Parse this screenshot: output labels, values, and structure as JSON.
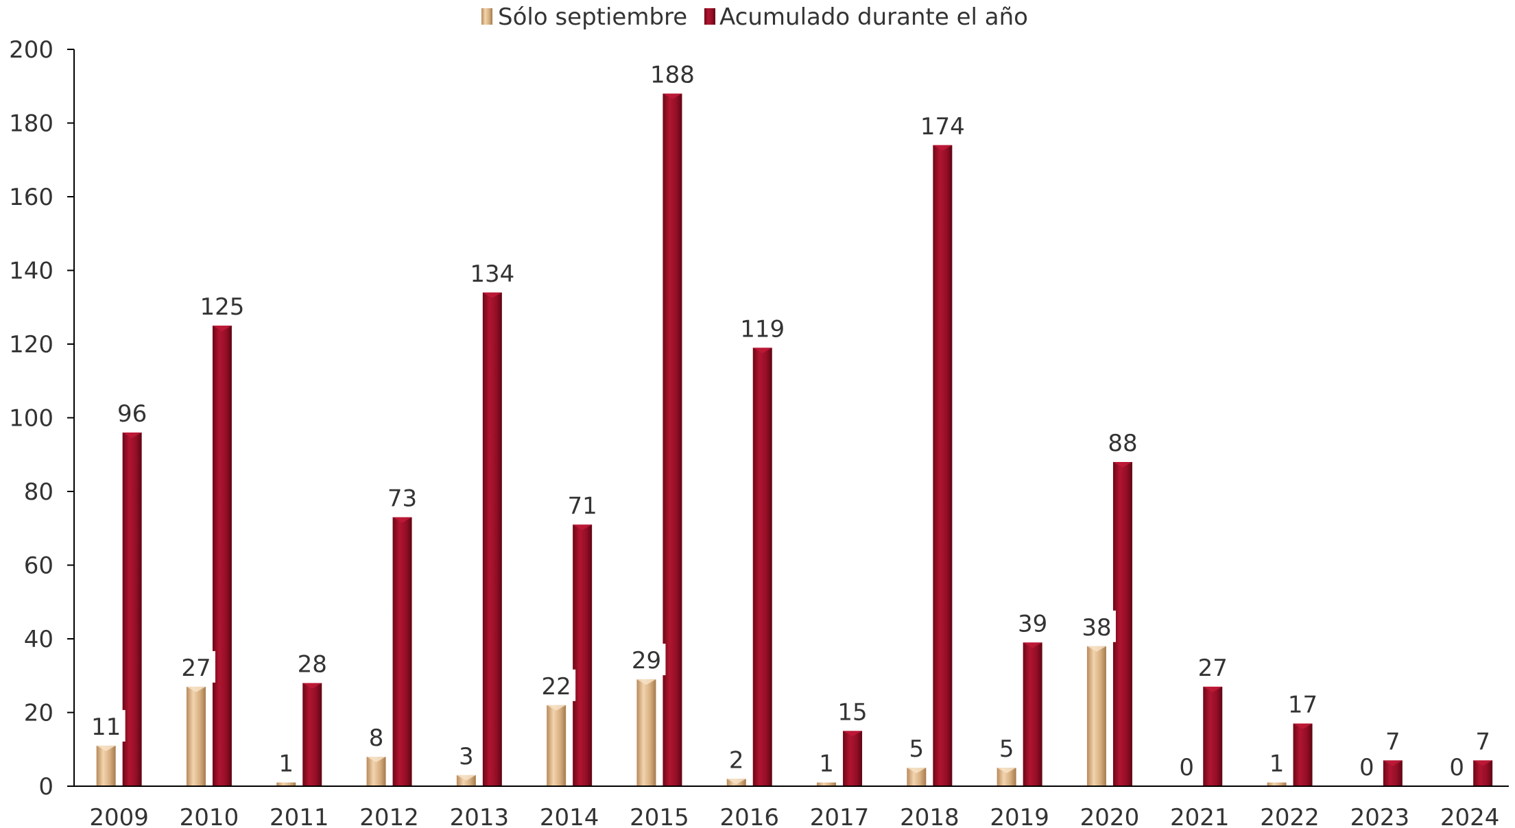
{
  "chart_data": {
    "type": "bar",
    "categories": [
      "2009",
      "2010",
      "2011",
      "2012",
      "2013",
      "2014",
      "2015",
      "2016",
      "2017",
      "2018",
      "2019",
      "2020",
      "2021",
      "2022",
      "2023",
      "2024"
    ],
    "series": [
      {
        "name": "Sólo septiembre",
        "color": "#D9B48A",
        "values": [
          11,
          27,
          1,
          8,
          3,
          22,
          29,
          2,
          1,
          5,
          5,
          38,
          0,
          1,
          0,
          0
        ]
      },
      {
        "name": "Acumulado durante el año",
        "color": "#9E0F2A",
        "values": [
          96,
          125,
          28,
          73,
          134,
          71,
          188,
          119,
          15,
          174,
          39,
          88,
          27,
          17,
          7,
          7
        ]
      }
    ],
    "ylim": [
      0,
      200
    ],
    "yticks": [
      0,
      20,
      40,
      60,
      80,
      100,
      120,
      140,
      160,
      180,
      200
    ],
    "legend_position": "top",
    "grid": false
  }
}
